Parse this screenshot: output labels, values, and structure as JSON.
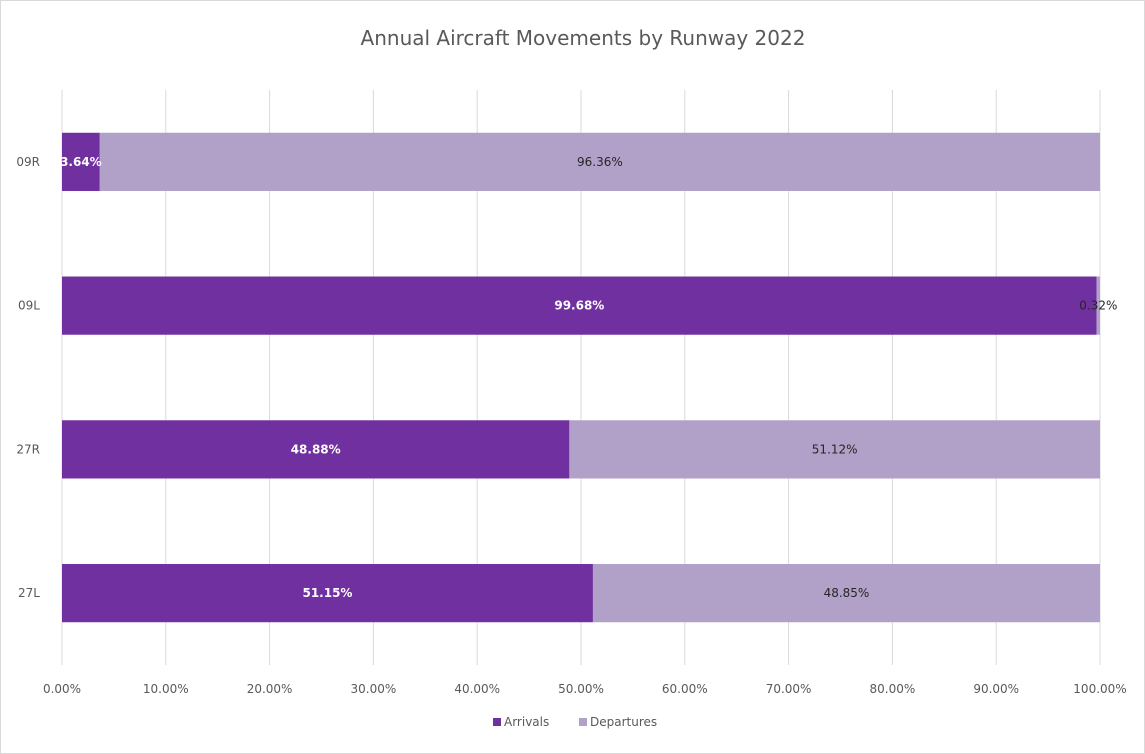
{
  "chart_data": {
    "type": "bar",
    "orientation": "horizontal",
    "stacked": "percent",
    "title": "Annual Aircraft Movements by Runway 2022",
    "categories": [
      "09R",
      "09L",
      "27R",
      "27L"
    ],
    "series": [
      {
        "name": "Arrivals",
        "color": "#7030a0",
        "label_color": "#ffffff",
        "values": [
          3.64,
          99.68,
          48.88,
          51.15
        ],
        "labels": [
          "3.64%",
          "99.68%",
          "48.88%",
          "51.15%"
        ]
      },
      {
        "name": "Departures",
        "color": "#b1a0c7",
        "label_color": "#262626",
        "values": [
          96.36,
          0.32,
          51.12,
          48.85
        ],
        "labels": [
          "96.36%",
          "0.32%",
          "51.12%",
          "48.85%"
        ]
      }
    ],
    "xlim": [
      0,
      100
    ],
    "x_ticks": [
      "0.00%",
      "10.00%",
      "20.00%",
      "30.00%",
      "40.00%",
      "50.00%",
      "60.00%",
      "70.00%",
      "80.00%",
      "90.00%",
      "100.00%"
    ],
    "grid": "vertical",
    "legend": "bottom",
    "gridline_color": "#d9d9d9"
  }
}
